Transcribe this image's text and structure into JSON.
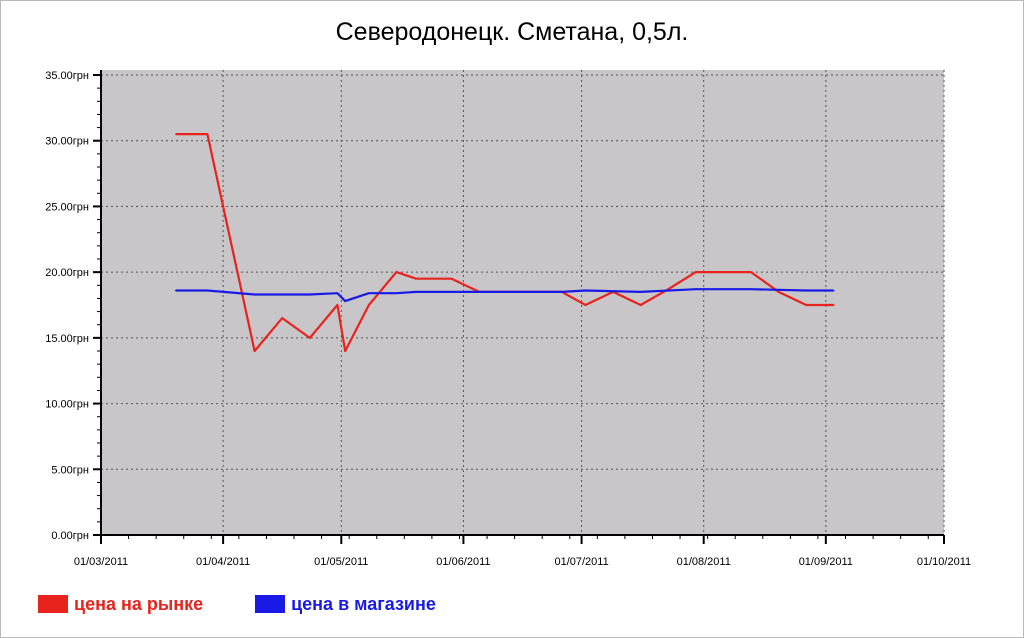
{
  "chart_data": {
    "type": "line",
    "title": "Северодонецк. Сметана, 0,5л.",
    "xlabel": "",
    "ylabel": "",
    "ylim": [
      0,
      35
    ],
    "xlim": [
      "2011-03-01",
      "2011-10-01"
    ],
    "grid": true,
    "legend_position": "bottom-left",
    "y_ticks": [
      "0.00грн",
      "5.00грн",
      "10.00грн",
      "15.00грн",
      "20.00грн",
      "25.00грн",
      "30.00грн",
      "35.00грн"
    ],
    "y_tick_values": [
      0,
      5,
      10,
      15,
      20,
      25,
      30,
      35
    ],
    "x_ticks": [
      "01/03/2011",
      "01/04/2011",
      "01/05/2011",
      "01/06/2011",
      "01/07/2011",
      "01/08/2011",
      "01/09/2011",
      "01/10/2011"
    ],
    "x_tick_dates": [
      "2011-03-01",
      "2011-04-01",
      "2011-05-01",
      "2011-06-01",
      "2011-07-01",
      "2011-08-01",
      "2011-09-01",
      "2011-10-01"
    ],
    "series": [
      {
        "name": "цена на рынке",
        "color": "#e8231e",
        "x": [
          "2011-03-20",
          "2011-03-28",
          "2011-04-09",
          "2011-04-16",
          "2011-04-23",
          "2011-04-30",
          "2011-05-02",
          "2011-05-08",
          "2011-05-15",
          "2011-05-20",
          "2011-05-29",
          "2011-06-05",
          "2011-06-12",
          "2011-06-19",
          "2011-06-26",
          "2011-07-02",
          "2011-07-09",
          "2011-07-16",
          "2011-07-23",
          "2011-07-30",
          "2011-08-06",
          "2011-08-13",
          "2011-08-20",
          "2011-08-27",
          "2011-09-03"
        ],
        "values": [
          30.5,
          30.5,
          14.0,
          16.5,
          15.0,
          17.5,
          14.0,
          17.5,
          20.0,
          19.5,
          19.5,
          18.5,
          18.5,
          18.5,
          18.5,
          17.5,
          18.5,
          17.5,
          18.7,
          20.0,
          20.0,
          20.0,
          18.5,
          17.5,
          17.5
        ]
      },
      {
        "name": "цена в магазине",
        "color": "#1a1ae6",
        "x": [
          "2011-03-20",
          "2011-03-28",
          "2011-04-09",
          "2011-04-23",
          "2011-04-30",
          "2011-05-02",
          "2011-05-08",
          "2011-05-15",
          "2011-05-20",
          "2011-06-05",
          "2011-06-26",
          "2011-07-02",
          "2011-07-16",
          "2011-07-30",
          "2011-08-13",
          "2011-08-27",
          "2011-09-03"
        ],
        "values": [
          18.6,
          18.6,
          18.3,
          18.3,
          18.4,
          17.8,
          18.4,
          18.4,
          18.5,
          18.5,
          18.5,
          18.6,
          18.5,
          18.7,
          18.7,
          18.6,
          18.6
        ]
      }
    ]
  }
}
